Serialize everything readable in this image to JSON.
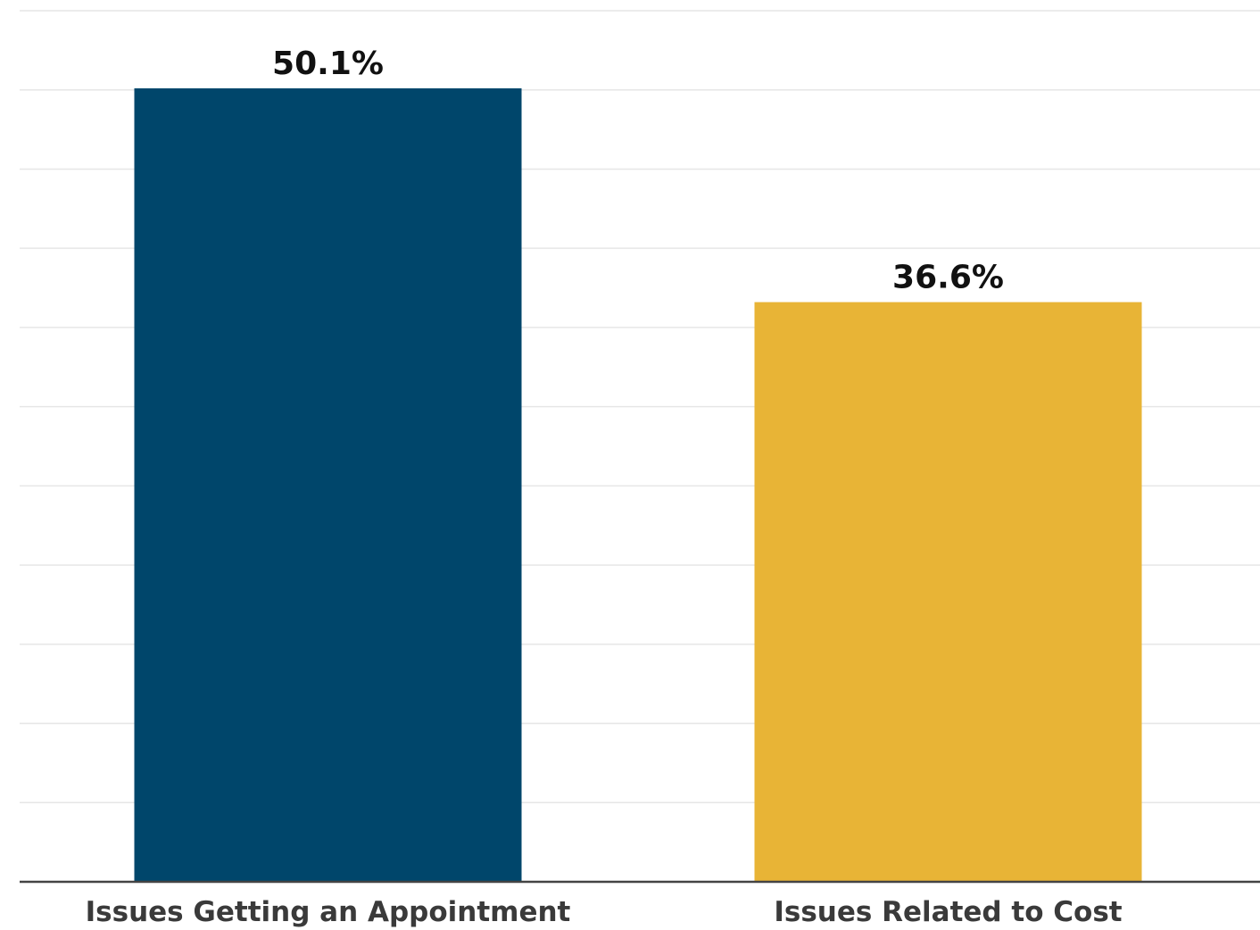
{
  "chart_data": {
    "type": "bar",
    "categories": [
      "Issues Getting an Appointment",
      "Issues Related to Cost"
    ],
    "values": [
      50.1,
      36.6
    ],
    "data_labels": [
      "50.1%",
      "36.6%"
    ],
    "colors": [
      "#00466b",
      "#e8b436"
    ],
    "ylim": [
      0,
      55
    ],
    "grid_step": 5,
    "grid": true,
    "title": "",
    "xlabel": "",
    "ylabel": ""
  }
}
